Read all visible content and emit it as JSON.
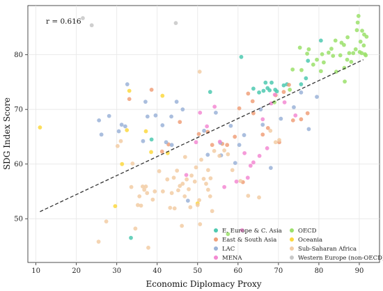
{
  "chart_data": {
    "type": "scatter",
    "xlabel": "Economic Diplomacy Proxy",
    "ylabel": "SDG Index Score",
    "xlim": [
      8,
      95
    ],
    "ylim": [
      42,
      89
    ],
    "xticks": [
      10,
      20,
      30,
      40,
      50,
      60,
      70,
      80,
      90
    ],
    "yticks": [
      50,
      60,
      70,
      80
    ],
    "annotation": "r = 0.616",
    "trendline": {
      "style": "dashed",
      "color": "#333333",
      "x": [
        11,
        91
      ],
      "y": [
        51.3,
        79.1
      ]
    },
    "legend": {
      "position": "lower-right",
      "columns": 2
    },
    "series": [
      {
        "name": "E. Europe & C. Asia",
        "color": "#4ec9b0",
        "points": [
          [
            33.5,
            46.5
          ],
          [
            38.6,
            64.5
          ],
          [
            53.1,
            73.2
          ],
          [
            60.8,
            79.6
          ],
          [
            63.8,
            73.8
          ],
          [
            65.2,
            73.1
          ],
          [
            66.3,
            73.4
          ],
          [
            66.8,
            74.9
          ],
          [
            67.3,
            73.9
          ],
          [
            67.8,
            73.5
          ],
          [
            68.3,
            74.9
          ],
          [
            69.2,
            73.6
          ],
          [
            69.6,
            73.3
          ],
          [
            71.3,
            74.4
          ],
          [
            72.1,
            74.6
          ],
          [
            75.6,
            74.6
          ],
          [
            76.8,
            75.7
          ],
          [
            77.3,
            78.9
          ],
          [
            80.5,
            82.6
          ]
        ]
      },
      {
        "name": "East & South Asia",
        "color": "#f0a07a",
        "points": [
          [
            33.1,
            71.9
          ],
          [
            41.2,
            62.3
          ],
          [
            42.8,
            63.6
          ],
          [
            45.6,
            67.7
          ],
          [
            50.3,
            65.5
          ],
          [
            52.5,
            65.9
          ],
          [
            53.6,
            63.5
          ],
          [
            56.1,
            63.7
          ],
          [
            57.3,
            63.5
          ],
          [
            59.2,
            65.0
          ],
          [
            60.3,
            70.2
          ],
          [
            61.2,
            56.7
          ],
          [
            62.5,
            72.9
          ],
          [
            63.6,
            71.5
          ],
          [
            63.8,
            69.3
          ],
          [
            66.1,
            65.4
          ],
          [
            67.4,
            66.6
          ],
          [
            69.3,
            72.6
          ],
          [
            70.2,
            64.0
          ],
          [
            71.3,
            73.2
          ],
          [
            72.6,
            74.5
          ],
          [
            73.6,
            68.0
          ],
          [
            75.6,
            68.2
          ],
          [
            77.2,
            69.3
          ],
          [
            38.6,
            73.6
          ]
        ]
      },
      {
        "name": "LAC",
        "color": "#9bb3d8",
        "points": [
          [
            25.6,
            68.0
          ],
          [
            26.2,
            65.4
          ],
          [
            28.1,
            68.8
          ],
          [
            30.5,
            66.0
          ],
          [
            31.2,
            67.2
          ],
          [
            32.1,
            66.9
          ],
          [
            32.6,
            74.6
          ],
          [
            36.5,
            64.2
          ],
          [
            37.1,
            71.4
          ],
          [
            37.6,
            68.7
          ],
          [
            39.6,
            68.9
          ],
          [
            41.3,
            67.1
          ],
          [
            42.2,
            64.0
          ],
          [
            43.5,
            68.7
          ],
          [
            43.6,
            63.5
          ],
          [
            44.8,
            71.4
          ],
          [
            46.3,
            70.0
          ],
          [
            47.6,
            53.3
          ],
          [
            51.6,
            66.1
          ],
          [
            52.5,
            61.7
          ],
          [
            54.5,
            69.4
          ],
          [
            55.6,
            63.9
          ],
          [
            55.8,
            61.6
          ],
          [
            58.2,
            67.0
          ],
          [
            59.3,
            60.2
          ],
          [
            60.3,
            63.5
          ],
          [
            61.5,
            65.3
          ],
          [
            65.6,
            70.0
          ],
          [
            66.1,
            67.2
          ],
          [
            68.1,
            59.3
          ],
          [
            70.6,
            68.3
          ],
          [
            73.8,
            70.4
          ],
          [
            75.6,
            73.1
          ],
          [
            77.5,
            66.4
          ],
          [
            79.5,
            72.3
          ]
        ]
      },
      {
        "name": "MENA",
        "color": "#f38ad2",
        "points": [
          [
            47.2,
            58.0
          ],
          [
            49.6,
            64.0
          ],
          [
            50.6,
            69.4
          ],
          [
            52.3,
            66.9
          ],
          [
            54.2,
            70.5
          ],
          [
            55.5,
            64.1
          ],
          [
            56.6,
            55.8
          ],
          [
            59.6,
            56.8
          ],
          [
            61.6,
            62.0
          ],
          [
            62.4,
            57.5
          ],
          [
            63.1,
            59.7
          ],
          [
            63.8,
            60.3
          ],
          [
            65.3,
            61.5
          ],
          [
            66.1,
            68.2
          ],
          [
            67.2,
            62.9
          ],
          [
            68.2,
            71.1
          ],
          [
            69.1,
            72.7
          ],
          [
            71.5,
            71.3
          ],
          [
            74.2,
            68.9
          ],
          [
            61.0,
            47.9
          ]
        ]
      },
      {
        "name": "OECD",
        "color": "#9be06b",
        "points": [
          [
            57.5,
            47.2
          ],
          [
            69.0,
            71.3
          ],
          [
            72.8,
            73.6
          ],
          [
            73.5,
            77.3
          ],
          [
            75.3,
            81.3
          ],
          [
            75.7,
            77.2
          ],
          [
            77.1,
            80.2
          ],
          [
            77.5,
            81.0
          ],
          [
            78.6,
            78.2
          ],
          [
            79.5,
            79.1
          ],
          [
            80.5,
            77.0
          ],
          [
            80.8,
            80.1
          ],
          [
            81.2,
            78.6
          ],
          [
            82.4,
            80.4
          ],
          [
            83.1,
            81.1
          ],
          [
            83.5,
            79.8
          ],
          [
            84.1,
            82.6
          ],
          [
            84.3,
            76.9
          ],
          [
            85.3,
            79.9
          ],
          [
            85.6,
            82.2
          ],
          [
            86.2,
            81.8
          ],
          [
            86.3,
            77.6
          ],
          [
            86.4,
            75.1
          ],
          [
            87.0,
            79.1
          ],
          [
            87.1,
            83.2
          ],
          [
            87.5,
            80.3
          ],
          [
            88.0,
            78.7
          ],
          [
            88.5,
            80.3
          ],
          [
            89.1,
            81.0
          ],
          [
            89.4,
            84.5
          ],
          [
            89.6,
            85.9
          ],
          [
            89.8,
            87.1
          ],
          [
            90.1,
            80.5
          ],
          [
            90.3,
            82.4
          ],
          [
            90.6,
            80.3
          ],
          [
            90.7,
            84.4
          ],
          [
            91.1,
            81.7
          ],
          [
            91.2,
            83.7
          ],
          [
            91.4,
            80.1
          ],
          [
            91.6,
            79.9
          ],
          [
            91.8,
            83.3
          ]
        ]
      },
      {
        "name": "Oceania",
        "color": "#fcd83f",
        "points": [
          [
            11.0,
            66.7
          ],
          [
            29.6,
            52.3
          ],
          [
            31.3,
            60.0
          ],
          [
            32.5,
            66.2
          ],
          [
            33.1,
            73.4
          ],
          [
            37.2,
            66.0
          ],
          [
            38.5,
            62.2
          ],
          [
            41.3,
            72.5
          ],
          [
            42.6,
            62.0
          ],
          [
            50.0,
            52.8
          ]
        ]
      },
      {
        "name": "Sub-Saharan Africa",
        "color": "#f2cda5",
        "points": [
          [
            25.5,
            45.8
          ],
          [
            27.4,
            49.5
          ],
          [
            30.2,
            63.3
          ],
          [
            31.0,
            64.2
          ],
          [
            33.6,
            55.8
          ],
          [
            33.9,
            60.1
          ],
          [
            34.6,
            48.2
          ],
          [
            35.2,
            52.5
          ],
          [
            35.6,
            54.1
          ],
          [
            36.0,
            52.4
          ],
          [
            36.4,
            55.9
          ],
          [
            36.8,
            55.3
          ],
          [
            37.2,
            55.9
          ],
          [
            37.5,
            54.7
          ],
          [
            37.8,
            44.7
          ],
          [
            38.9,
            53.5
          ],
          [
            39.4,
            55.0
          ],
          [
            40.5,
            58.7
          ],
          [
            41.4,
            55.0
          ],
          [
            42.5,
            57.2
          ],
          [
            43.2,
            52.0
          ],
          [
            43.6,
            54.7
          ],
          [
            44.1,
            57.5
          ],
          [
            44.3,
            51.9
          ],
          [
            44.9,
            58.8
          ],
          [
            45.2,
            55.2
          ],
          [
            45.6,
            56.0
          ],
          [
            46.1,
            48.7
          ],
          [
            46.3,
            56.4
          ],
          [
            46.8,
            54.1
          ],
          [
            46.9,
            61.3
          ],
          [
            47.3,
            57.2
          ],
          [
            47.8,
            55.4
          ],
          [
            48.2,
            52.1
          ],
          [
            48.5,
            57.9
          ],
          [
            49.3,
            56.8
          ],
          [
            49.6,
            59.4
          ],
          [
            50.0,
            52.5
          ],
          [
            50.4,
            53.4
          ],
          [
            50.5,
            76.9
          ],
          [
            50.9,
            60.8
          ],
          [
            51.5,
            57.3
          ],
          [
            52.1,
            56.4
          ],
          [
            52.6,
            55.3
          ],
          [
            52.6,
            58.9
          ],
          [
            53.1,
            54.1
          ],
          [
            53.2,
            57.4
          ],
          [
            53.6,
            51.4
          ],
          [
            54.1,
            62.4
          ],
          [
            55.4,
            61.5
          ],
          [
            56.6,
            62.5
          ],
          [
            57.5,
            61.8
          ],
          [
            58.6,
            58.9
          ],
          [
            60.6,
            56.9
          ],
          [
            62.5,
            54.2
          ],
          [
            65.2,
            53.9
          ],
          [
            69.3,
            64.0
          ],
          [
            70.2,
            64.4
          ],
          [
            68.0,
            66.1
          ],
          [
            50.6,
            49.0
          ]
        ]
      },
      {
        "name": "Western Europe (non-OECD)",
        "color": "#c7c7c7",
        "points": [
          [
            21.6,
            86.7
          ],
          [
            23.8,
            85.4
          ],
          [
            44.6,
            85.8
          ]
        ]
      }
    ]
  }
}
